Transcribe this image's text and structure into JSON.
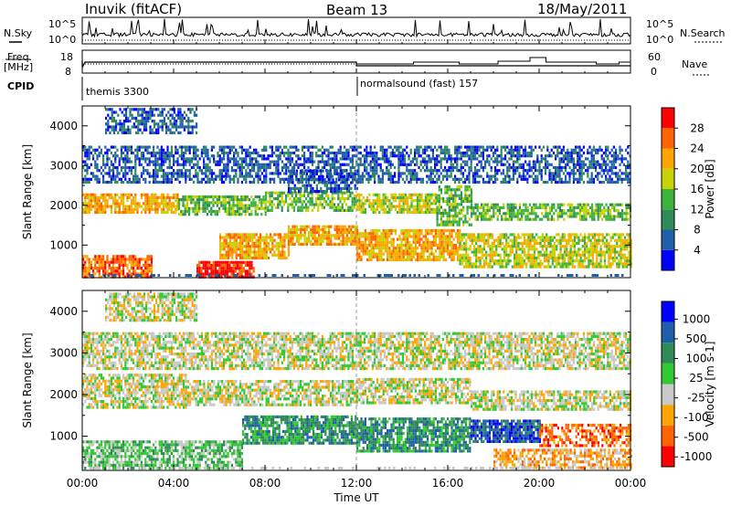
{
  "header": {
    "title": "Inuvik (fitACF)",
    "beam": "Beam 13",
    "date": "18/May/2011"
  },
  "top_strip": {
    "left_label": "N.Sky",
    "left_ticks": [
      "10^5",
      "10^0"
    ],
    "right_ticks": [
      "10^5",
      "10^0"
    ],
    "right_label": "N.Search"
  },
  "freq_strip": {
    "left_label": "Freq.",
    "left_unit": "[MHz]",
    "left_ticks": [
      "18",
      "8"
    ],
    "right_ticks": [
      "60",
      "0"
    ],
    "right_label": "Nave"
  },
  "cpid": {
    "label": "CPID",
    "segments": [
      {
        "start_hour": 0,
        "text": "themis 3300"
      },
      {
        "start_hour": 12,
        "text": "normalsound (fast) 157"
      }
    ]
  },
  "colors": {
    "power": [
      "#0000ff",
      "#1f5fa8",
      "#2e8b57",
      "#3cb43c",
      "#c8d200",
      "#ffa500",
      "#ff6400",
      "#ff0000"
    ],
    "velocity": [
      "#ff0000",
      "#ff6400",
      "#ffa500",
      "#c8c8c8",
      "#32c832",
      "#2e8b57",
      "#1f5fa8",
      "#0000ff"
    ]
  },
  "chart_data": [
    {
      "type": "heatmap",
      "name": "power",
      "ylabel": "Slant Range [km]",
      "yticks": [
        1000,
        2000,
        3000,
        4000
      ],
      "ylim": [
        180,
        4500
      ],
      "xlim": [
        0,
        24
      ],
      "colorbar": {
        "label": "Power [dB]",
        "ticks": [
          "4",
          "8",
          "12",
          "16",
          "20",
          "24",
          "28"
        ],
        "range": [
          0,
          32
        ]
      },
      "bands": [
        {
          "t0": 0,
          "t1": 4.2,
          "r0": 1800,
          "r1": 2300,
          "level": 5
        },
        {
          "t0": 4.2,
          "t1": 8,
          "r0": 1750,
          "r1": 2250,
          "level": 3
        },
        {
          "t0": 8,
          "t1": 12,
          "r0": 1900,
          "r1": 2350,
          "level": 3
        },
        {
          "t0": 12,
          "t1": 15.5,
          "r0": 1850,
          "r1": 2300,
          "level": 4
        },
        {
          "t0": 15.5,
          "t1": 17,
          "r0": 1500,
          "r1": 2500,
          "level": 3
        },
        {
          "t0": 17,
          "t1": 24,
          "r0": 1650,
          "r1": 2050,
          "level": 3
        },
        {
          "t0": 0,
          "t1": 3,
          "r0": 220,
          "r1": 750,
          "level": 6
        },
        {
          "t0": 5,
          "t1": 7.5,
          "r0": 230,
          "r1": 600,
          "level": 7
        },
        {
          "t0": 6,
          "t1": 9,
          "r0": 700,
          "r1": 1300,
          "level": 5
        },
        {
          "t0": 9,
          "t1": 12,
          "r0": 1000,
          "r1": 1500,
          "level": 5
        },
        {
          "t0": 12,
          "t1": 16.5,
          "r0": 600,
          "r1": 1400,
          "level": 5
        },
        {
          "t0": 16.5,
          "t1": 24,
          "r0": 450,
          "r1": 1300,
          "level": 4
        },
        {
          "t0": 0,
          "t1": 24,
          "r0": 2600,
          "r1": 3500,
          "level": 1
        },
        {
          "t0": 1,
          "t1": 5,
          "r0": 3800,
          "r1": 4450,
          "level": 1
        },
        {
          "t0": 9,
          "t1": 12,
          "r0": 2350,
          "r1": 2900,
          "level": 1
        }
      ]
    },
    {
      "type": "heatmap",
      "name": "velocity",
      "ylabel": "Slant Range [km]",
      "yticks": [
        1000,
        2000,
        3000,
        4000
      ],
      "ylim": [
        180,
        4500
      ],
      "xlim": [
        0,
        24
      ],
      "xlabel": "Time UT",
      "xticks": [
        "00:00",
        "04:00",
        "08:00",
        "12:00",
        "16:00",
        "20:00",
        "00:00"
      ],
      "xtick_hours": [
        0,
        4,
        8,
        12,
        16,
        20,
        24
      ],
      "colorbar": {
        "label": "Velocity [m s-1]",
        "ticks": [
          "1000",
          "500",
          "100",
          "25",
          "-25",
          "-100",
          "-500",
          "-1000"
        ]
      },
      "bands": [
        {
          "t0": 0,
          "t1": 4.5,
          "r0": 1700,
          "r1": 2500,
          "level": 3
        },
        {
          "t0": 4.5,
          "t1": 12,
          "r0": 1750,
          "r1": 2350,
          "level": 3
        },
        {
          "t0": 12,
          "t1": 17,
          "r0": 1800,
          "r1": 2400,
          "level": 3
        },
        {
          "t0": 17,
          "t1": 24,
          "r0": 1650,
          "r1": 2100,
          "level": 3
        },
        {
          "t0": 0,
          "t1": 24,
          "r0": 2600,
          "r1": 3500,
          "level": 3
        },
        {
          "t0": 1,
          "t1": 5,
          "r0": 3800,
          "r1": 4450,
          "level": 3
        },
        {
          "t0": 7,
          "t1": 12,
          "r0": 800,
          "r1": 1500,
          "level": 5
        },
        {
          "t0": 12,
          "t1": 17,
          "r0": 650,
          "r1": 1450,
          "level": 5
        },
        {
          "t0": 17,
          "t1": 20,
          "r0": 900,
          "r1": 1400,
          "level": 6
        },
        {
          "t0": 20,
          "t1": 24,
          "r0": 800,
          "r1": 1300,
          "level": 1
        },
        {
          "t0": 0,
          "t1": 7,
          "r0": 220,
          "r1": 900,
          "level": 4
        },
        {
          "t0": 18,
          "t1": 24,
          "r0": 250,
          "r1": 700,
          "level": 2
        }
      ]
    }
  ]
}
